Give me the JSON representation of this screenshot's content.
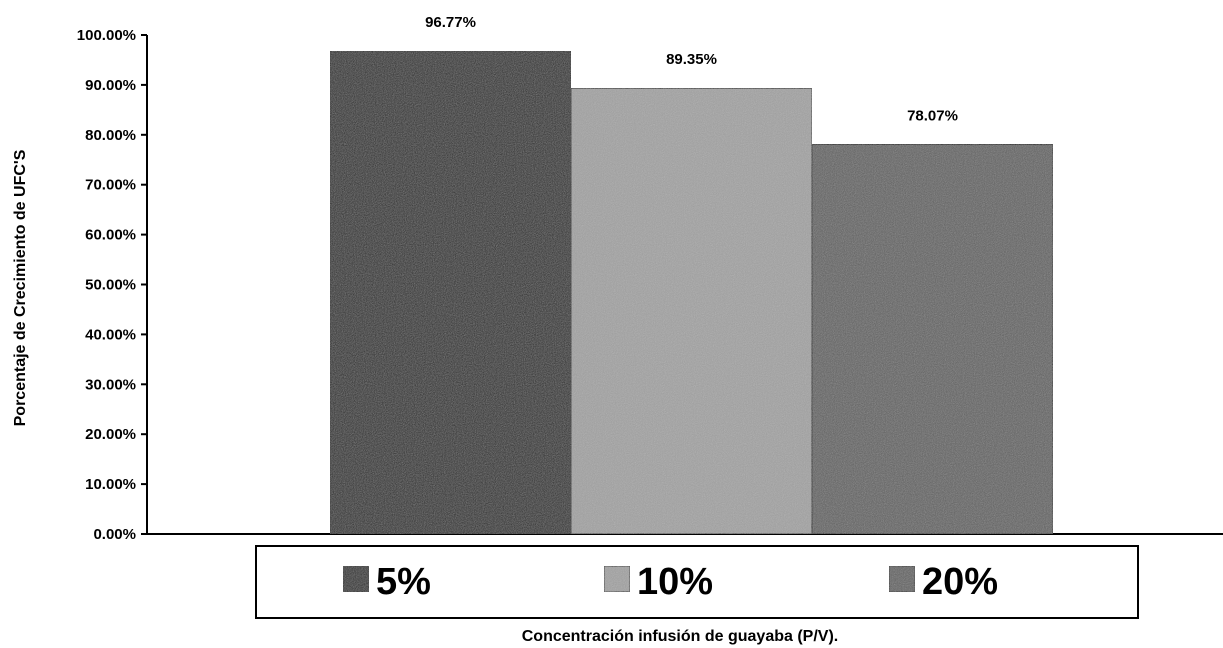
{
  "chart_data": {
    "type": "bar",
    "title": "",
    "xlabel": "Concentración infusión de guayaba (P/V).",
    "ylabel": "Porcentaje de Crecimiento de UFC'S",
    "ylim": [
      0,
      100
    ],
    "yticks": [
      "0.00%",
      "10.00%",
      "20.00%",
      "30.00%",
      "40.00%",
      "50.00%",
      "60.00%",
      "70.00%",
      "80.00%",
      "90.00%",
      "100.00%"
    ],
    "grid": false,
    "legend_position": "bottom",
    "series": [
      {
        "name": "5%",
        "values": [
          96.77
        ],
        "label": "96.77%",
        "color": "#1a1a1a"
      },
      {
        "name": "10%",
        "values": [
          89.35
        ],
        "label": "89.35%",
        "color": "#9a9a9a"
      },
      {
        "name": "20%",
        "values": [
          78.07
        ],
        "label": "78.07%",
        "color": "#5a5a5a"
      }
    ]
  }
}
